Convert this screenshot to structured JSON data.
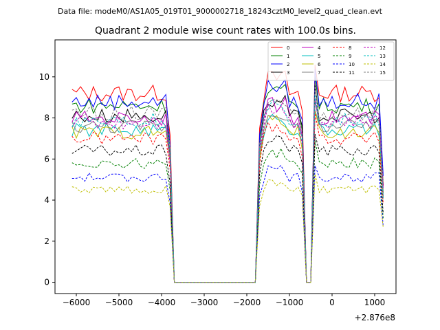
{
  "figure": {
    "header": "Data file: modeM0/AS1A05_019T01_9000002718_18243cztM0_level2_quad_clean.evt",
    "offset_label": "+2.876e8"
  },
  "chart_data": {
    "type": "line",
    "title": "Quadrant 2 module wise count rates with 100.0s bins.",
    "xlabel": "",
    "ylabel": "",
    "x_offset": 287600000,
    "xlim": [
      -6500,
      1500
    ],
    "ylim": [
      -0.55,
      11.8
    ],
    "x_ticks": [
      -6000,
      -5000,
      -4000,
      -3000,
      -2000,
      -1000,
      0,
      1000
    ],
    "x_tick_labels": [
      "−6000",
      "−5000",
      "−4000",
      "−3000",
      "−2000",
      "−1000",
      "0",
      "1000"
    ],
    "y_ticks": [
      0,
      2,
      4,
      6,
      8,
      10
    ],
    "y_tick_labels": [
      "0",
      "2",
      "4",
      "6",
      "8",
      "10"
    ],
    "grid": false,
    "legend_position": "top-right",
    "legend_columns": 4,
    "series": [
      {
        "name": "0",
        "color": "#ff0000",
        "dash": "solid",
        "level": 9.2
      },
      {
        "name": "1",
        "color": "#008000",
        "dash": "solid",
        "level": 8.6
      },
      {
        "name": "2",
        "color": "#0000ff",
        "dash": "solid",
        "level": 8.8
      },
      {
        "name": "3",
        "color": "#000000",
        "dash": "solid",
        "level": 8.1
      },
      {
        "name": "4",
        "color": "#bf00bf",
        "dash": "solid",
        "level": 8.0
      },
      {
        "name": "5",
        "color": "#00bfbf",
        "dash": "solid",
        "level": 7.4
      },
      {
        "name": "6",
        "color": "#bfbf00",
        "dash": "solid",
        "level": 7.3
      },
      {
        "name": "7",
        "color": "#808080",
        "dash": "solid",
        "level": 7.6
      },
      {
        "name": "8",
        "color": "#ff0000",
        "dash": "dashed",
        "level": 7.0
      },
      {
        "name": "9",
        "color": "#008000",
        "dash": "dashed",
        "level": 5.8
      },
      {
        "name": "10",
        "color": "#0000ff",
        "dash": "dashed",
        "level": 5.1
      },
      {
        "name": "11",
        "color": "#000000",
        "dash": "dashed",
        "level": 6.4
      },
      {
        "name": "12",
        "color": "#bf00bf",
        "dash": "dashed",
        "level": 7.8
      },
      {
        "name": "13",
        "color": "#00bfbf",
        "dash": "dashed",
        "level": 7.9
      },
      {
        "name": "14",
        "color": "#bfbf00",
        "dash": "dashed",
        "level": 4.5
      },
      {
        "name": "15",
        "color": "#808080",
        "dash": "dashed",
        "level": 8.2
      }
    ]
  }
}
